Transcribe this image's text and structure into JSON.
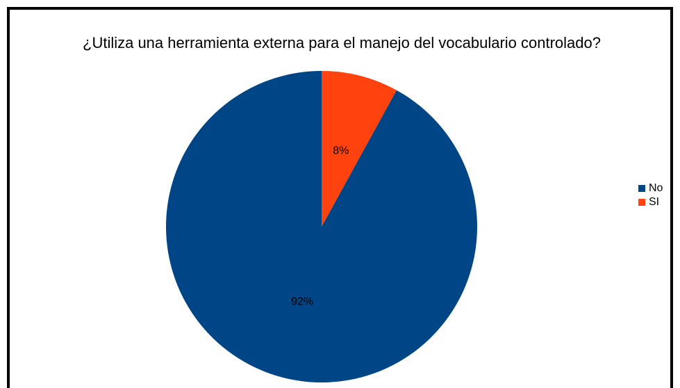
{
  "chart_data": {
    "type": "pie",
    "title": "¿Utiliza una herramienta externa para el manejo del vocabulario controlado?",
    "categories": [
      "No",
      "SI"
    ],
    "values": [
      92,
      8
    ],
    "value_labels": [
      "92%",
      "8%"
    ],
    "colors": [
      "#004586",
      "#ff420e"
    ],
    "legend": "right"
  }
}
